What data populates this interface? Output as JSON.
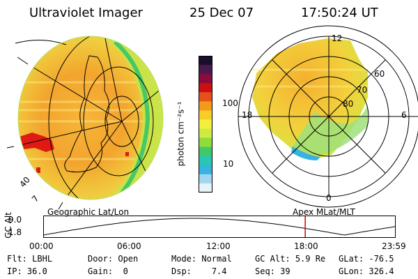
{
  "header": {
    "instrument": "Ultraviolet Imager",
    "date": "25 Dec 07",
    "time": "17:50:24 UT"
  },
  "left_panel": {
    "caption": "Geographic Lat/Lon",
    "edge_labels": [
      "40",
      "7"
    ]
  },
  "colorbar": {
    "unit_label": "photon cm⁻²s⁻¹",
    "ticks": [
      "100",
      "10"
    ],
    "colors": [
      "#1a0e2e",
      "#4a1a4f",
      "#8b0b3d",
      "#cc1010",
      "#e8501a",
      "#f49a1a",
      "#f9cc2a",
      "#f2f03a",
      "#cdeb40",
      "#8fdc3a",
      "#3fc96a",
      "#29c7b3",
      "#38b2e0",
      "#9fd8ee",
      "#e6f4f8"
    ]
  },
  "right_panel": {
    "caption": "Apex MLat/MLT",
    "mlt_labels": {
      "top": "12",
      "right": "6",
      "bottom": "0",
      "left": "18"
    },
    "mlat_labels": [
      "60",
      "70",
      "80"
    ]
  },
  "altitude_strip": {
    "axis_label": "GC Alt",
    "y_ticks": [
      "9.0",
      "1.8"
    ],
    "x_ticks": [
      "00:00",
      "06:00",
      "12:00",
      "18:00",
      "23:59"
    ],
    "marker_time_hours": 17.84,
    "marker_color": "#cc0000"
  },
  "status": {
    "filter": {
      "label": "Flt:",
      "value": "LBHL"
    },
    "ip": {
      "label": "IP:",
      "value": "36.0"
    },
    "door": {
      "label": "Door:",
      "value": "Open"
    },
    "gain": {
      "label": "Gain:",
      "value": "0"
    },
    "mode": {
      "label": "Mode:",
      "value": "Normal"
    },
    "dsp": {
      "label": "Dsp:",
      "value": "7.4"
    },
    "gc_alt": {
      "label": "GC Alt:",
      "value": "5.9 Re"
    },
    "seq": {
      "label": "Seq:",
      "value": "39"
    },
    "glat": {
      "label": "GLat:",
      "value": "-76.5"
    },
    "glon": {
      "label": "GLon:",
      "value": "326.4"
    }
  }
}
